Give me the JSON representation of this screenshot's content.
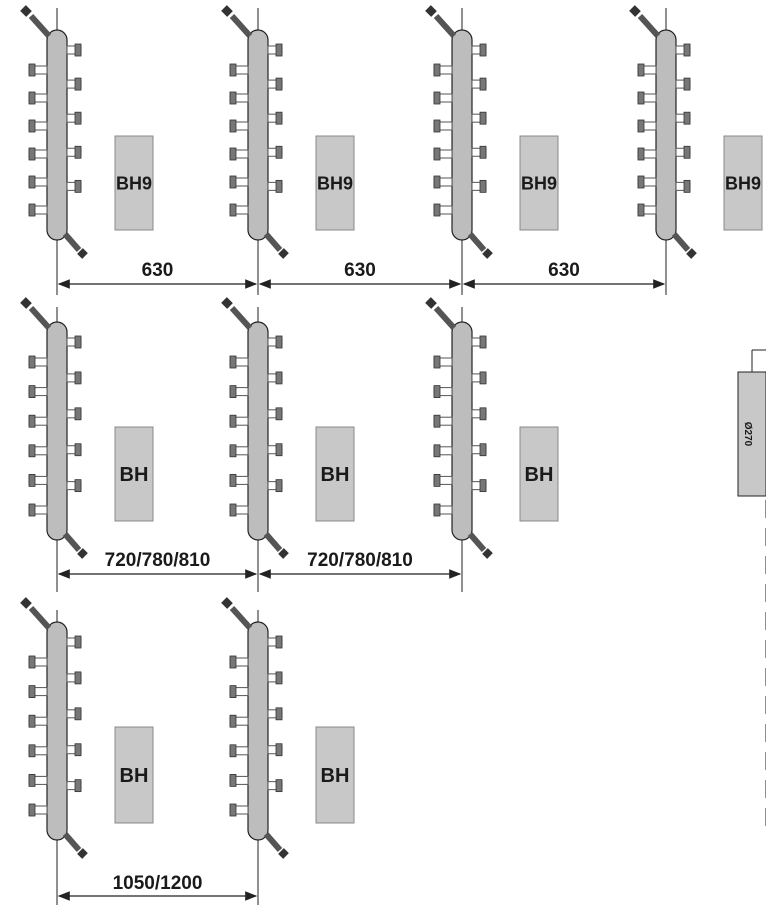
{
  "rows": [
    {
      "units": [
        {
          "box_label": "BH9"
        },
        {
          "box_label": "BH9"
        },
        {
          "box_label": "BH9"
        },
        {
          "box_label": "BH9"
        }
      ],
      "dimensions": [
        "630",
        "630",
        "630"
      ]
    },
    {
      "units": [
        {
          "box_label": "BH"
        },
        {
          "box_label": "BH"
        },
        {
          "box_label": "BH"
        }
      ],
      "dimensions": [
        "720/780/810",
        "720/780/810"
      ]
    },
    {
      "units": [
        {
          "box_label": "BH"
        },
        {
          "box_label": "BH"
        }
      ],
      "dimensions": [
        "1050/1200"
      ]
    }
  ],
  "side_label": "Ø270",
  "colors": {
    "pipe_fill": "#bdbdbd",
    "box_fill": "#c8c8c8",
    "line": "#222222",
    "fitting": "#555555"
  }
}
